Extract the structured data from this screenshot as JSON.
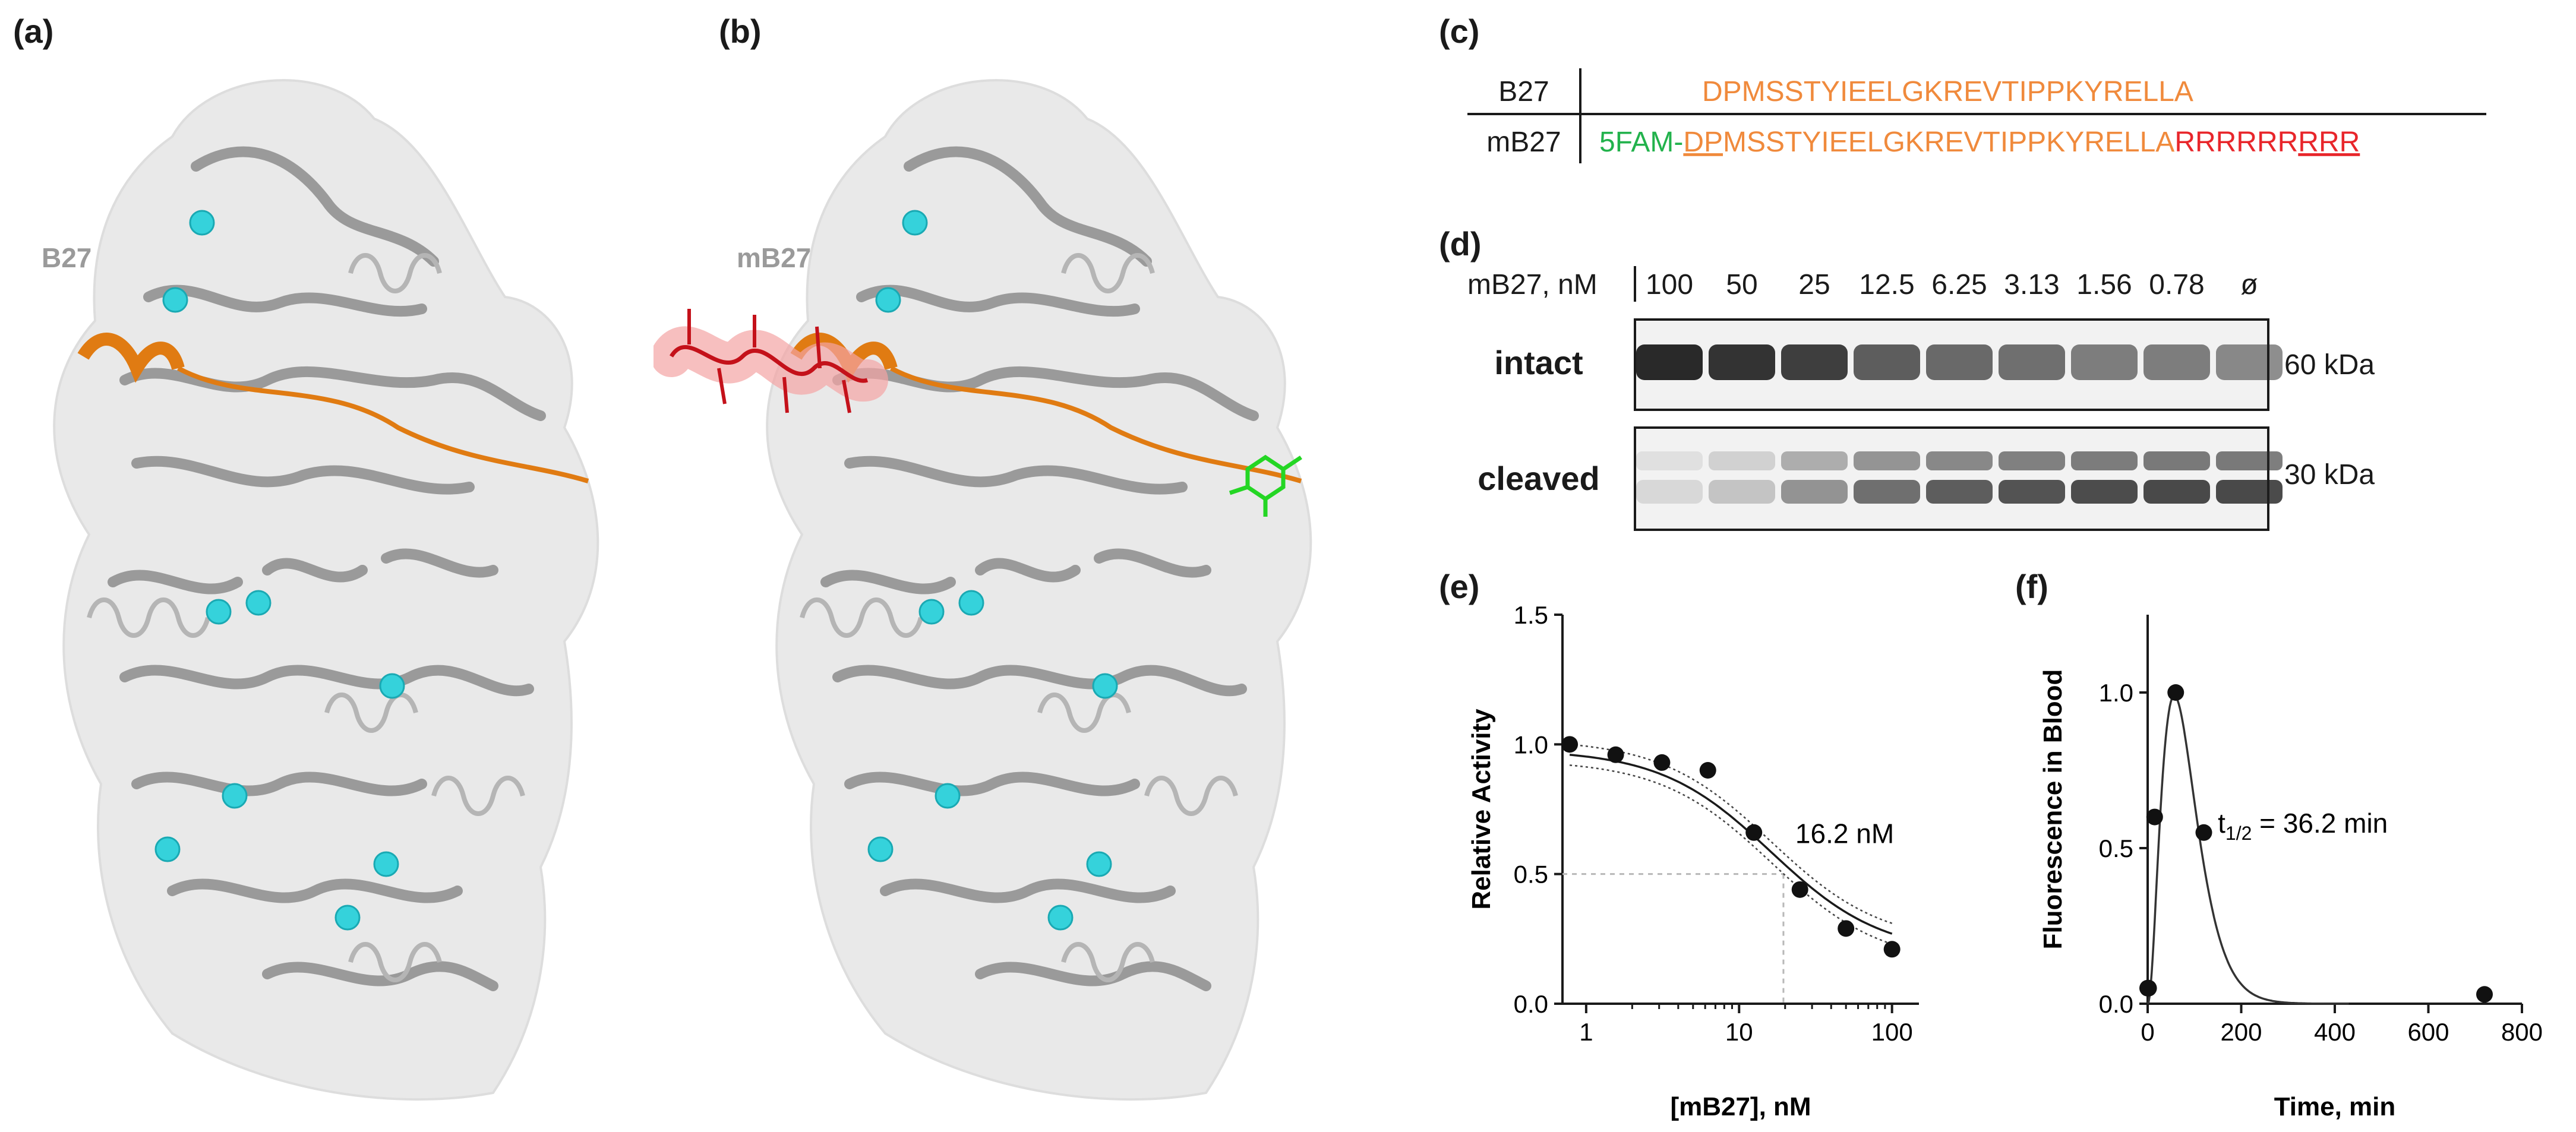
{
  "panels": {
    "a": {
      "letter": "(a)",
      "peptide_label": "B27"
    },
    "b": {
      "letter": "(b)",
      "peptide_label": "mB27"
    },
    "c": {
      "letter": "(c)",
      "rows": [
        {
          "name": "B27",
          "prefix": "",
          "underlined_core": "",
          "core": "DPMSSTYIEELGKREVTIPPKYRELLA",
          "arg_plain": "",
          "arg_underlined": ""
        },
        {
          "name": "mB27",
          "prefix": "5FAM-",
          "underlined_core": "DP",
          "core": "MSSTYIEELGKREVTIPPKYRELLA",
          "arg_plain": "RRRRRR",
          "arg_underlined": "RRR"
        }
      ],
      "colors": {
        "label": "#1a1a1a",
        "fam": "#22b24c",
        "peptide": "#f08a3c",
        "arg": "#e8262b"
      }
    },
    "d": {
      "letter": "(d)",
      "conc_header": "mB27, nM",
      "concentrations": [
        "100",
        "50",
        "25",
        "12.5",
        "6.25",
        "3.13",
        "1.56",
        "0.78",
        "ø"
      ],
      "rows": [
        {
          "label": "intact",
          "size": "60 kDa"
        },
        {
          "label": "cleaved",
          "size": "30 kDa"
        }
      ]
    },
    "e": {
      "letter": "(e)",
      "annotation": "16.2 nM"
    },
    "f": {
      "letter": "(f)",
      "annotation_main": "t",
      "annotation_sub": "1/2",
      "annotation_rest": " = 36.2 min"
    }
  },
  "chart_data": [
    {
      "id": "e",
      "type": "scatter",
      "xscale": "log",
      "xlabel": "[mB27], nM",
      "ylabel": "Relative Activity",
      "xticks": [
        1,
        10,
        100
      ],
      "xtick_labels": [
        "1",
        "10",
        "100"
      ],
      "yticks": [
        0.0,
        0.5,
        1.0,
        1.5
      ],
      "ytick_labels": [
        "0.0",
        "0.5",
        "1.0",
        "1.5"
      ],
      "xlim": [
        0.7,
        150
      ],
      "ylim": [
        0,
        1.5
      ],
      "x": [
        0.78,
        1.56,
        3.13,
        6.25,
        12.5,
        25,
        50,
        100
      ],
      "y": [
        1.0,
        0.96,
        0.93,
        0.9,
        0.66,
        0.44,
        0.29,
        0.21
      ],
      "fit": {
        "model": "sigmoid",
        "top": 0.98,
        "bottom": 0.19,
        "ic50": 16.2,
        "hill": 1.2,
        "ci_width": 0.04
      },
      "reference_lines": {
        "y": 0.5,
        "x": 19.5
      },
      "grid": false
    },
    {
      "id": "f",
      "type": "scatter",
      "xlabel": "Time, min",
      "ylabel": "Fluorescence in Blood",
      "xticks": [
        0,
        200,
        400,
        600,
        800
      ],
      "xtick_labels": [
        "0",
        "200",
        "400",
        "600",
        "800"
      ],
      "yticks": [
        0.0,
        0.5,
        1.0
      ],
      "ytick_labels": [
        "0.0",
        "0.5",
        "1.0"
      ],
      "xlim": [
        0,
        800
      ],
      "ylim": [
        0,
        1.25
      ],
      "x": [
        0,
        2,
        15,
        60,
        120,
        720
      ],
      "y": [
        0.05,
        0.05,
        0.6,
        1.0,
        0.55,
        0.03
      ],
      "fit": {
        "model": "absorption-elimination",
        "peak_time": 57,
        "half_life": 36.2
      },
      "grid": false
    }
  ]
}
